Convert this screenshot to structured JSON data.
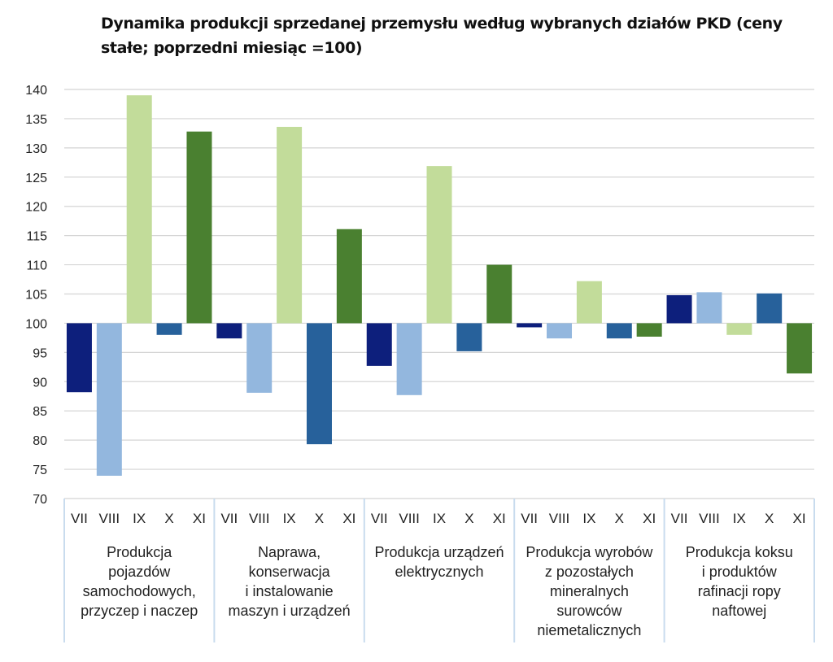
{
  "chart_data": {
    "type": "bar",
    "title": "Dynamika produkcji sprzedanej przemysłu według wybranych działów PKD (ceny stałe; poprzedni miesiąc =100)",
    "xlabel": "",
    "ylabel": "",
    "ylim": [
      70,
      140
    ],
    "baseline": 100,
    "yticks": [
      "140",
      "135",
      "130",
      "125",
      "120",
      "115",
      "110",
      "105",
      "100",
      "95",
      "90",
      "85",
      "80",
      "75",
      "70"
    ],
    "months": [
      "VII",
      "VIII",
      "IX",
      "X",
      "XI"
    ],
    "month_colors": [
      "#0d1f7c",
      "#93b7de",
      "#c2dc9a",
      "#27619b",
      "#4a8030"
    ],
    "grid": true,
    "legend": "none",
    "groups": [
      {
        "label": "Produkcja pojazdów samochodowych, przyczep i naczep",
        "label_lines": [
          "Produkcja",
          "pojazdów",
          "samochodowych,",
          "przyczep i naczep"
        ],
        "values": [
          88.2,
          73.9,
          139.0,
          98.0,
          132.8
        ]
      },
      {
        "label": "Naprawa, konserwacja i instalowanie maszyn i urządzeń",
        "label_lines": [
          "Naprawa,",
          "konserwacja",
          "i instalowanie",
          "maszyn i urządzeń"
        ],
        "values": [
          97.4,
          88.1,
          133.6,
          79.3,
          116.1
        ]
      },
      {
        "label": "Produkcja urządzeń elektrycznych",
        "label_lines": [
          "Produkcja urządzeń",
          "elektrycznych"
        ],
        "values": [
          92.7,
          87.7,
          126.9,
          95.2,
          110.0
        ]
      },
      {
        "label": "Produkcja wyrobów z pozostałych mineralnych surowców niemetalicznych",
        "label_lines": [
          "Produkcja wyrobów",
          "z pozostałych",
          "mineralnych",
          "surowców",
          "niemetalicznych"
        ],
        "values": [
          99.3,
          97.4,
          107.2,
          97.4,
          97.7
        ]
      },
      {
        "label": "Produkcja koksu i produktów rafinacji ropy naftowej",
        "label_lines": [
          "Produkcja koksu",
          "i produktów",
          "rafinacji ropy",
          "naftowej"
        ],
        "values": [
          104.8,
          105.3,
          98.0,
          105.1,
          91.4
        ]
      }
    ]
  }
}
